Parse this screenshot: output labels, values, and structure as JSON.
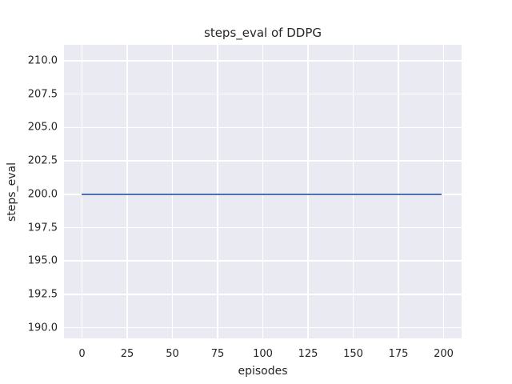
{
  "chart_data": {
    "type": "line",
    "title": "steps_eval of DDPG",
    "xlabel": "episodes",
    "ylabel": "steps_eval",
    "xlim": [
      -9.95,
      209.95
    ],
    "ylim": [
      189.2,
      211.2
    ],
    "xticks": [
      0,
      25,
      50,
      75,
      100,
      125,
      150,
      175,
      200
    ],
    "xticklabels": [
      "0",
      "25",
      "50",
      "75",
      "100",
      "125",
      "150",
      "175",
      "200"
    ],
    "yticks": [
      190,
      192.5,
      195,
      197.5,
      200,
      202.5,
      205,
      207.5,
      210
    ],
    "yticklabels": [
      "190.0",
      "192.5",
      "195.0",
      "197.5",
      "200.0",
      "202.5",
      "205.0",
      "207.5",
      "210.0"
    ],
    "grid": true,
    "legend": null,
    "style": {
      "plot_background": "#eaeaf2",
      "grid_color": "#ffffff",
      "text_color": "#262626",
      "figure_background": "#ffffff"
    },
    "series": [
      {
        "name": "steps_eval",
        "color": "#4c72b0",
        "x": [
          0,
          199
        ],
        "y": [
          200,
          200
        ]
      }
    ]
  }
}
